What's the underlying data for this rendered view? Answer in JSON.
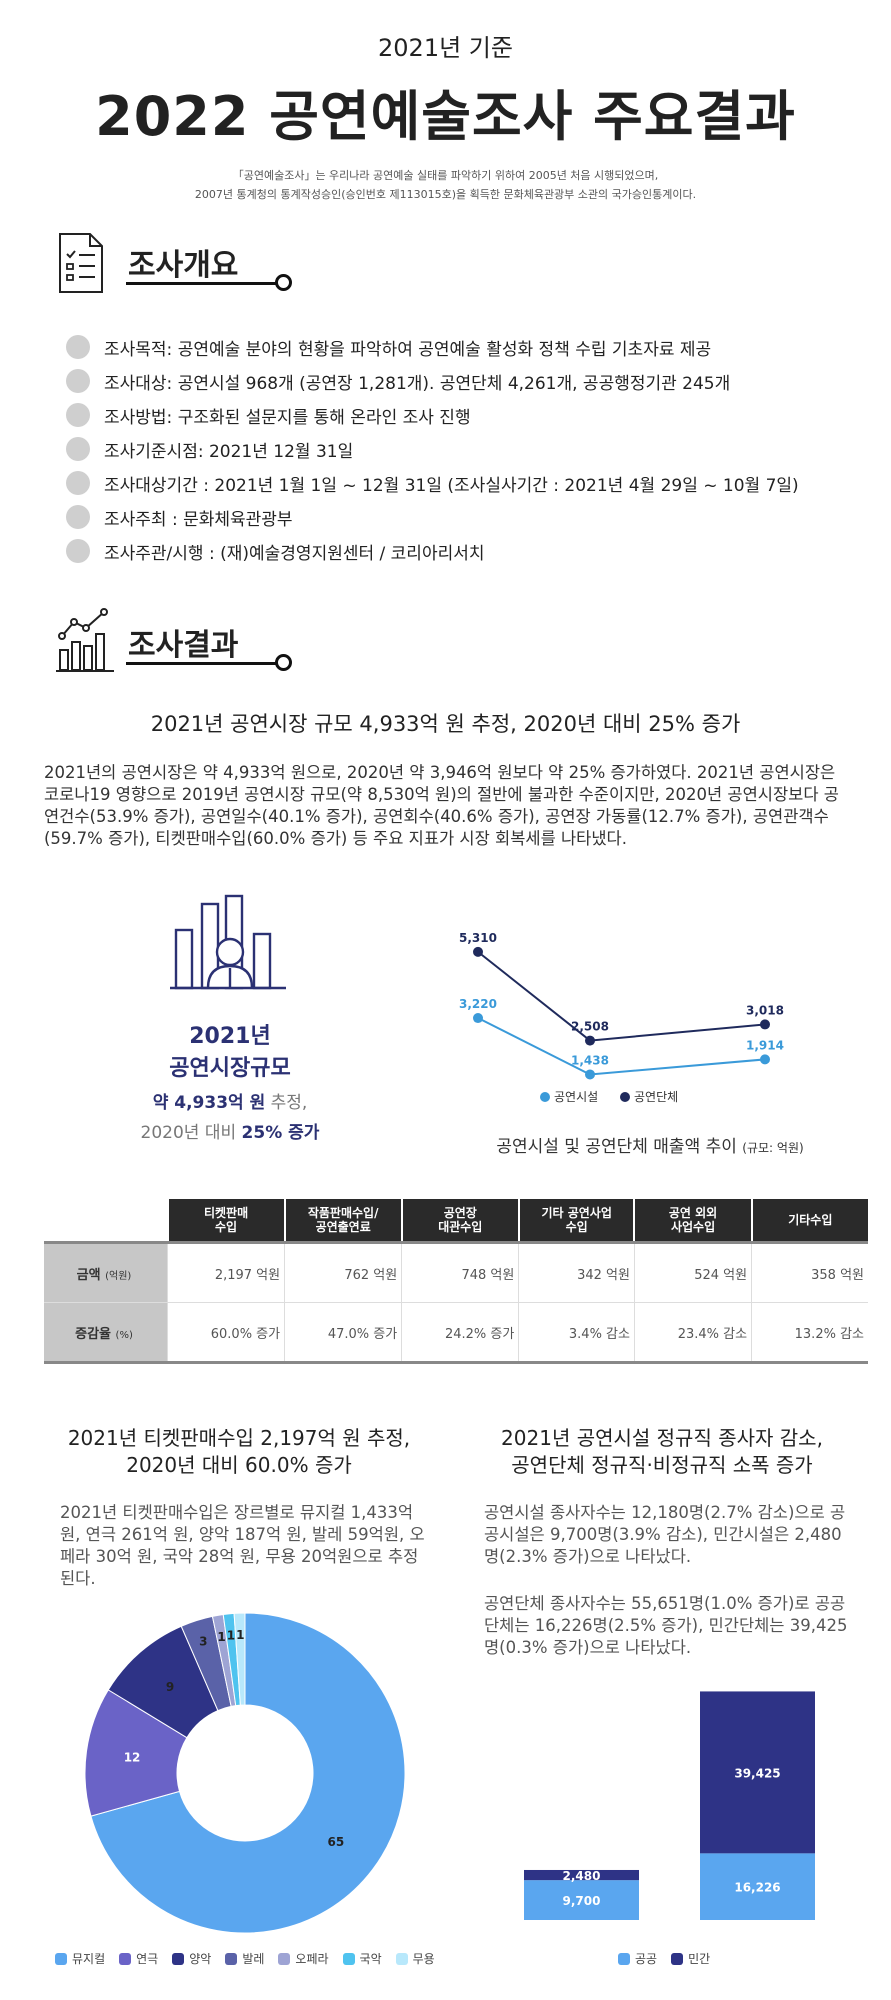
{
  "header": {
    "subtitle": "2021년 기준",
    "title": "2022 공연예술조사 주요결과",
    "note_line1": "「공연예술조사」는 우리나라 공연예술 실태를 파악하기 위하여 2005년 처음 시행되었으며,",
    "note_line2": "2007년 통계청의 통계작성승인(승인번호 제113015호)을 획득한 문화체육관광부 소관의 국가승인통계이다."
  },
  "overview": {
    "heading": "조사개요",
    "items": [
      "조사목적: 공연예술 분야의 현황을 파악하여 공연예술 활성화 정책 수립 기초자료 제공",
      "조사대상: 공연시설 968개 (공연장 1,281개). 공연단체 4,261개, 공공행정기관 245개",
      "조사방법: 구조화된 설문지를 통해 온라인 조사 진행",
      "조사기준시점: 2021년 12월 31일",
      "조사대상기간 : 2021년 1월 1일 ~ 12월 31일 (조사실사기간 : 2021년 4월 29일 ~ 10월 7일)",
      "조사주최 : 문화체육관광부",
      "조사주관/시행 : (재)예술경영지원센터  / 코리아리서치"
    ]
  },
  "results": {
    "heading": "조사결과",
    "headline": "2021년 공연시장 규모 4,933억 원 추정, 2020년 대비 25% 증가",
    "paragraph": "2021년의 공연시장은 약 4,933억 원으로, 2020년 약 3,946억 원보다 약 25% 증가하였다. 2021년 공연시장은 코로나19 영향으로 2019년 공연시장 규모(약 8,530억 원)의 절반에 불과한 수준이지만, 2020년 공연시장보다 공연건수(53.9% 증가), 공연일수(40.1% 증가), 공연회수(40.6% 증가), 공연장 가동률(12.7% 증가), 공연관객수(59.7% 증가), 티켓판매수입(60.0% 증가) 등 주요 지표가 시장 회복세를 나타냈다.",
    "market": {
      "year": "2021년",
      "label": "공연시장규모",
      "value": "약 4,933억 원",
      "suffix": " 추정,",
      "compare_prefix": "2020년 대비 ",
      "compare_value": "25% 증가"
    }
  },
  "chart_data": [
    {
      "type": "line",
      "title": "공연시설 및 공연단체 매출액 추이",
      "unit_note": "(규모: 억원)",
      "series": [
        {
          "name": "공연시설",
          "color": "#3a9ad9",
          "values": [
            3220,
            1438,
            1914
          ],
          "labels": [
            "3,220",
            "1,438",
            "1,914"
          ]
        },
        {
          "name": "공연단체",
          "color": "#1f2a5c",
          "values": [
            5310,
            2508,
            3018
          ],
          "labels": [
            "5,310",
            "2,508",
            "3,018"
          ]
        }
      ],
      "ylim": [
        0,
        6000
      ],
      "legend": "bottom"
    },
    {
      "type": "pie",
      "title": "2021년 티켓판매수입 2,197억 원 추정, 2020년 대비 60.0% 증가",
      "slices": [
        {
          "name": "뮤지컬",
          "value": 65,
          "label": "65",
          "color": "#5aa6ef"
        },
        {
          "name": "연극",
          "value": 12,
          "label": "12",
          "color": "#6a63c7"
        },
        {
          "name": "양악",
          "value": 9,
          "label": "9",
          "color": "#2e3386"
        },
        {
          "name": "발레",
          "value": 3,
          "label": "3",
          "color": "#5a62a8"
        },
        {
          "name": "오페라",
          "value": 1,
          "label": "1",
          "color": "#9ea4d4"
        },
        {
          "name": "국악",
          "value": 1,
          "label": "1",
          "color": "#4fc3ef"
        },
        {
          "name": "무용",
          "value": 1,
          "label": "1",
          "color": "#b8e8fb"
        }
      ],
      "legend": "bottom"
    },
    {
      "type": "bar",
      "stacked": true,
      "title": "2021년 공연시설 정규직 종사자 감소, 공연단체 정규직·비정규직 소폭 증가",
      "categories": [
        "공연시설",
        "공연단체"
      ],
      "series": [
        {
          "name": "공공",
          "color": "#5aa6ef",
          "values": [
            9700,
            16226
          ],
          "labels": [
            "9,700",
            "16,226"
          ]
        },
        {
          "name": "민간",
          "color": "#2e3386",
          "values": [
            2480,
            39425
          ],
          "labels": [
            "2,480",
            "39,425"
          ]
        }
      ],
      "legend": "bottom"
    },
    {
      "type": "table",
      "columns": [
        "티켓판매\n수입",
        "작품판매수입/\n공연출연료",
        "공연장\n대관수입",
        "기타 공연사업\n수입",
        "공연 외외\n사업수입",
        "기타수입"
      ],
      "rows": [
        {
          "label": "금액",
          "unit": "(억원)",
          "values": [
            "2,197 억원",
            "762 억원",
            "748 억원",
            "342 억원",
            "524 억원",
            "358 억원"
          ]
        },
        {
          "label": "증감율",
          "unit": "(%)",
          "values": [
            "60.0% 증가",
            "47.0% 증가",
            "24.2% 증가",
            "3.4% 감소",
            "23.4% 감소",
            "13.2% 감소"
          ]
        }
      ]
    }
  ],
  "ticket": {
    "heading_line1": "2021년 티켓판매수입 2,197억 원 추정,",
    "heading_line2": "2020년 대비 60.0% 증가",
    "paragraph": "2021년 티켓판매수입은 장르별로 뮤지컬 1,433억 원, 연극 261억 원, 양악 187억 원, 발레 59억원, 오페라 30억 원, 국악 28억 원, 무용 20억원으로 추정된다."
  },
  "staff": {
    "heading_line1": "2021년 공연시설 정규직 종사자 감소,",
    "heading_line2": "공연단체 정규직·비정규직 소폭 증가",
    "paragraph1": "공연시설 종사자수는 12,180명(2.7% 감소)으로 공공시설은 9,700명(3.9% 감소), 민간시설은 2,480명(2.3% 증가)으로 나타났다.",
    "paragraph2": "공연단체 종사자수는 55,651명(1.0% 증가)로 공공단체는 16,226명(2.5% 증가), 민간단체는 39,425명(0.3% 증가)으로 나타났다."
  }
}
